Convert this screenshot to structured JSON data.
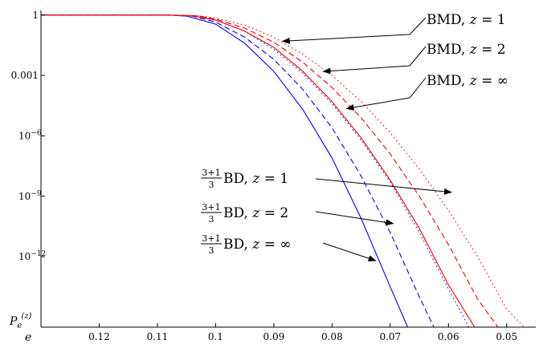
{
  "chart_data": {
    "type": "line",
    "xlabel": "e",
    "ylabel": "P_e^(z)",
    "xlim": [
      0.13,
      0.045
    ],
    "ylim_log10": [
      -15.5,
      0.15
    ],
    "y_scale": "log",
    "x_ticks": [
      {
        "value": 0.12,
        "label": "0.12"
      },
      {
        "value": 0.11,
        "label": "0.11"
      },
      {
        "value": 0.1,
        "label": "0.1"
      },
      {
        "value": 0.09,
        "label": "0.09"
      },
      {
        "value": 0.08,
        "label": "0.08"
      },
      {
        "value": 0.07,
        "label": "0.07"
      },
      {
        "value": 0.06,
        "label": "0.06"
      },
      {
        "value": 0.05,
        "label": "0.05"
      }
    ],
    "y_ticks": [
      {
        "log10": 0,
        "label": "1"
      },
      {
        "log10": -3,
        "label": "0.001"
      },
      {
        "log10": -6,
        "label": "10",
        "exp": "−6"
      },
      {
        "log10": -9,
        "label": "10",
        "exp": "−9"
      },
      {
        "log10": -12,
        "label": "10",
        "exp": "−12"
      }
    ],
    "grid": false,
    "series": [
      {
        "family": "BD",
        "z": "1",
        "color": "#0000ee",
        "dash": "solid",
        "x": [
          0.13,
          0.108,
          0.105,
          0.1,
          0.095,
          0.09,
          0.085,
          0.08,
          0.075,
          0.07,
          0.067
        ],
        "log10y": [
          0,
          0,
          -0.05,
          -0.45,
          -1.4,
          -2.8,
          -4.7,
          -7.1,
          -10.1,
          -13.5,
          -15.5
        ]
      },
      {
        "family": "BD",
        "z": "2",
        "color": "#0000ee",
        "dash": "dashed",
        "x": [
          0.13,
          0.108,
          0.104,
          0.1,
          0.095,
          0.09,
          0.085,
          0.08,
          0.075,
          0.07,
          0.065,
          0.0625
        ],
        "log10y": [
          0,
          0,
          -0.05,
          -0.35,
          -1.1,
          -2.2,
          -3.7,
          -5.6,
          -8.0,
          -10.8,
          -14.0,
          -15.5
        ]
      },
      {
        "family": "BD",
        "z": "∞",
        "color": "#0000ee",
        "dash": "dotted",
        "x": [
          0.13,
          0.108,
          0.103,
          0.1,
          0.095,
          0.09,
          0.085,
          0.08,
          0.075,
          0.07,
          0.065,
          0.06,
          0.0565
        ],
        "log10y": [
          0,
          0,
          -0.04,
          -0.25,
          -0.8,
          -1.7,
          -2.9,
          -4.4,
          -6.2,
          -8.3,
          -10.8,
          -13.6,
          -15.5
        ]
      },
      {
        "family": "BMD",
        "z": "1",
        "color": "#ee0000",
        "dash": "solid",
        "x": [
          0.13,
          0.108,
          0.104,
          0.1,
          0.095,
          0.09,
          0.085,
          0.08,
          0.075,
          0.07,
          0.065,
          0.06,
          0.0555
        ],
        "log10y": [
          0,
          0,
          -0.04,
          -0.25,
          -0.8,
          -1.6,
          -2.8,
          -4.3,
          -6.1,
          -8.2,
          -10.6,
          -13.4,
          -15.5
        ]
      },
      {
        "family": "BMD",
        "z": "2",
        "color": "#ee0000",
        "dash": "dashed",
        "x": [
          0.13,
          0.108,
          0.103,
          0.1,
          0.095,
          0.09,
          0.085,
          0.08,
          0.075,
          0.07,
          0.065,
          0.06,
          0.055,
          0.0515
        ],
        "log10y": [
          0,
          0,
          -0.04,
          -0.2,
          -0.65,
          -1.35,
          -2.35,
          -3.6,
          -5.1,
          -6.9,
          -9.0,
          -11.4,
          -14.1,
          -15.5
        ]
      },
      {
        "family": "BMD",
        "z": "∞",
        "color": "#ee0000",
        "dash": "dotted",
        "x": [
          0.13,
          0.108,
          0.103,
          0.1,
          0.095,
          0.09,
          0.085,
          0.08,
          0.075,
          0.07,
          0.065,
          0.06,
          0.055,
          0.05,
          0.047
        ],
        "log10y": [
          0,
          0,
          -0.03,
          -0.15,
          -0.5,
          -1.1,
          -1.95,
          -3.0,
          -4.3,
          -5.85,
          -7.65,
          -9.7,
          -12.0,
          -14.6,
          -15.5
        ]
      }
    ],
    "annotations": [
      {
        "id": "bmd-1",
        "text": "BMD, z = 1",
        "point": {
          "x": 0.0885,
          "log10y": -1.3
        }
      },
      {
        "id": "bmd-2",
        "text": "BMD, z = 2",
        "point": {
          "x": 0.0815,
          "log10y": -2.8
        }
      },
      {
        "id": "bmd-inf",
        "text": "BMD, z = ∞",
        "point": {
          "x": 0.0775,
          "log10y": -4.65
        }
      },
      {
        "id": "bd-1",
        "frac_num": "3+1",
        "frac_den": "3",
        "text": "BD, z = 1",
        "point": {
          "x": 0.0595,
          "log10y": -8.8
        }
      },
      {
        "id": "bd-2",
        "frac_num": "3+1",
        "frac_den": "3",
        "text": "BD, z = 2",
        "point": {
          "x": 0.0695,
          "log10y": -10.35
        }
      },
      {
        "id": "bd-inf",
        "frac_num": "3+1",
        "frac_den": "3",
        "text": "BD, z = ∞",
        "point": {
          "x": 0.0725,
          "log10y": -12.2
        }
      }
    ]
  }
}
